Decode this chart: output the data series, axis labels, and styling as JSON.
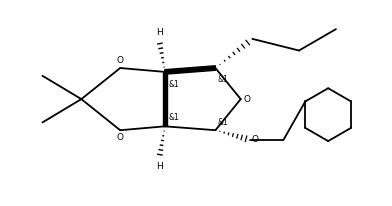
{
  "bg_color": "#ffffff",
  "line_color": "#000000",
  "line_width": 1.3,
  "fig_width": 3.92,
  "fig_height": 2.06,
  "dpi": 100,
  "font_size_label": 6.5,
  "font_size_stereo": 5.5,
  "xlim": [
    -0.5,
    9.5
  ],
  "ylim": [
    0.2,
    5.5
  ]
}
